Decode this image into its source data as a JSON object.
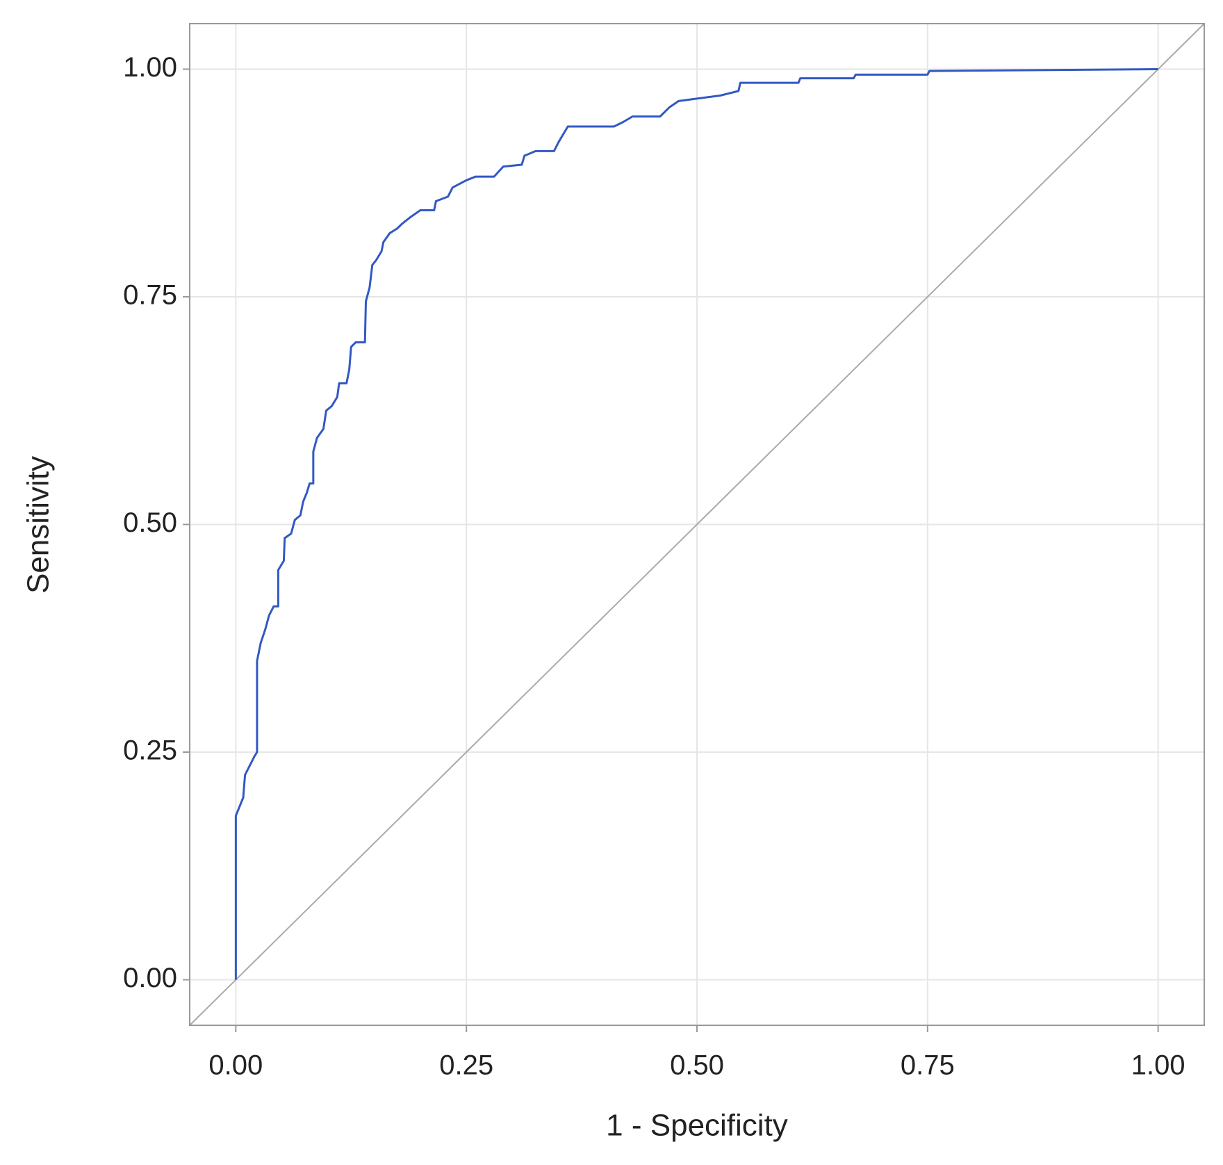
{
  "chart_data": {
    "type": "line",
    "x_label": "1 - Specificity",
    "y_label": "Sensitivity",
    "xlim": [
      -0.05,
      1.05
    ],
    "ylim": [
      -0.05,
      1.05
    ],
    "xticks": [
      {
        "value": 0,
        "label": "0.00"
      },
      {
        "value": 0.25,
        "label": "0.25"
      },
      {
        "value": 0.5,
        "label": "0.50"
      },
      {
        "value": 0.75,
        "label": "0.75"
      },
      {
        "value": 1,
        "label": "1.00"
      }
    ],
    "yticks": [
      {
        "value": 0,
        "label": "0.00"
      },
      {
        "value": 0.25,
        "label": "0.25"
      },
      {
        "value": 0.5,
        "label": "0.50"
      },
      {
        "value": 0.75,
        "label": "0.75"
      },
      {
        "value": 1,
        "label": "1.00"
      }
    ],
    "grid": true,
    "reference_diagonal": true,
    "series": [
      {
        "color": "#3358c4",
        "x": [
          0,
          0,
          0.004,
          0.008,
          0.01,
          0.015,
          0.02,
          0.023,
          0.023,
          0.027,
          0.032,
          0.036,
          0.041,
          0.046,
          0.046,
          0.052,
          0.053,
          0.06,
          0.064,
          0.07,
          0.073,
          0.077,
          0.08,
          0.084,
          0.084,
          0.088,
          0.095,
          0.098,
          0.104,
          0.11,
          0.112,
          0.12,
          0.123,
          0.125,
          0.13,
          0.14,
          0.141,
          0.145,
          0.148,
          0.152,
          0.158,
          0.16,
          0.167,
          0.175,
          0.18,
          0.19,
          0.2,
          0.215,
          0.217,
          0.23,
          0.235,
          0.25,
          0.26,
          0.28,
          0.29,
          0.31,
          0.313,
          0.325,
          0.345,
          0.35,
          0.36,
          0.41,
          0.42,
          0.43,
          0.46,
          0.47,
          0.48,
          0.525,
          0.545,
          0.547,
          0.61,
          0.612,
          0.67,
          0.672,
          0.75,
          0.752,
          1
        ],
        "values": [
          0,
          0.18,
          0.19,
          0.2,
          0.225,
          0.235,
          0.245,
          0.25,
          0.35,
          0.37,
          0.385,
          0.4,
          0.41,
          0.41,
          0.45,
          0.46,
          0.485,
          0.49,
          0.505,
          0.51,
          0.525,
          0.535,
          0.545,
          0.545,
          0.58,
          0.595,
          0.605,
          0.625,
          0.63,
          0.64,
          0.655,
          0.655,
          0.67,
          0.695,
          0.7,
          0.7,
          0.745,
          0.76,
          0.785,
          0.79,
          0.8,
          0.81,
          0.82,
          0.825,
          0.83,
          0.838,
          0.845,
          0.845,
          0.855,
          0.86,
          0.87,
          0.878,
          0.882,
          0.882,
          0.893,
          0.895,
          0.905,
          0.91,
          0.91,
          0.92,
          0.937,
          0.937,
          0.942,
          0.948,
          0.948,
          0.958,
          0.965,
          0.971,
          0.976,
          0.985,
          0.985,
          0.99,
          0.99,
          0.994,
          0.994,
          0.998,
          1
        ]
      }
    ]
  }
}
